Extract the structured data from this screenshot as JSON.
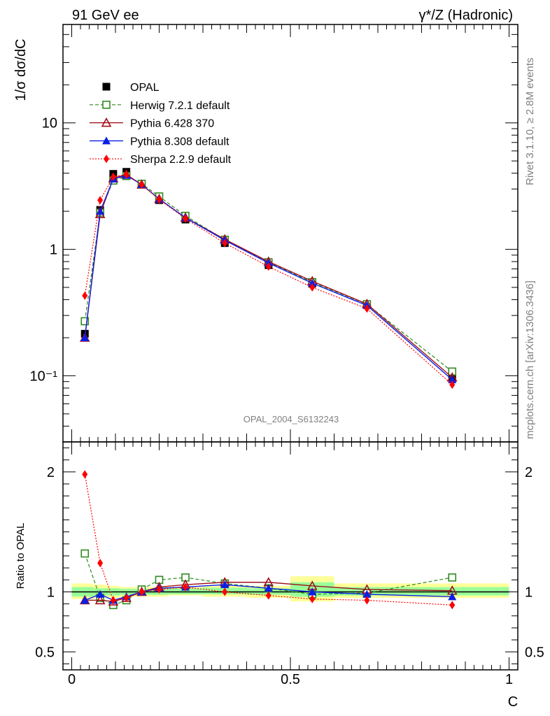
{
  "header": {
    "left": "91 GeV ee",
    "right": "γ*/Z (Hadronic)"
  },
  "side_labels": {
    "rivet": "Rivet 3.1.10, ≥ 2.8M events",
    "source": "mcplots.cern.ch [arXiv:1306.3436]"
  },
  "watermark": "OPAL_2004_S6132243",
  "colors": {
    "opal": "#000000",
    "herwig": "#2e8b1f",
    "pythia6": "#a0101a",
    "pythia8": "#0a1ee6",
    "sherpa": "#ff0000",
    "band_yellow": "#ffff99",
    "band_green": "#99ff99"
  },
  "chart_data": [
    {
      "type": "line",
      "title": "",
      "ylabel": "1/σ dσ/dC",
      "xlabel": "",
      "yscale": "log",
      "xlim": [
        -0.02,
        1.02
      ],
      "ylim": [
        0.03,
        60
      ],
      "y_tick_labels": [
        "10⁻¹",
        "1",
        "10"
      ],
      "legend_placement": "top-left",
      "legend": [
        "OPAL",
        "Herwig 7.2.1 default",
        "Pythia 6.428 370",
        "Pythia 8.308 default",
        "Sherpa 2.2.9 default"
      ],
      "x": [
        0.03,
        0.065,
        0.095,
        0.125,
        0.16,
        0.2,
        0.26,
        0.35,
        0.45,
        0.55,
        0.675,
        0.87
      ],
      "series": [
        {
          "name": "OPAL",
          "style": "data",
          "values": [
            0.215,
            2.05,
            3.95,
            4.1,
            3.25,
            2.45,
            1.72,
            1.12,
            0.75,
            0.535,
            0.365,
            0.096
          ]
        },
        {
          "name": "Herwig 7.2.1 default",
          "style": "herwig",
          "values": [
            0.27,
            1.95,
            3.5,
            3.8,
            3.3,
            2.62,
            1.84,
            1.19,
            0.79,
            0.55,
            0.368,
            0.108
          ]
        },
        {
          "name": "Pythia 6.428 370",
          "style": "pythia6",
          "values": [
            0.2,
            1.9,
            3.65,
            3.9,
            3.25,
            2.5,
            1.78,
            1.2,
            0.8,
            0.56,
            0.37,
            0.097
          ]
        },
        {
          "name": "Pythia 8.308 default",
          "style": "pythia8",
          "values": [
            0.2,
            2.0,
            3.6,
            3.85,
            3.25,
            2.5,
            1.78,
            1.18,
            0.78,
            0.54,
            0.36,
            0.093
          ]
        },
        {
          "name": "Sherpa 2.2.9 default",
          "style": "sherpa",
          "values": [
            0.43,
            2.45,
            3.75,
            3.9,
            3.25,
            2.48,
            1.75,
            1.12,
            0.73,
            0.5,
            0.34,
            0.085
          ]
        }
      ]
    },
    {
      "type": "line",
      "title": "",
      "ylabel": "Ratio to OPAL",
      "xlabel": "C",
      "xlim": [
        -0.02,
        1.02
      ],
      "ylim": [
        0.35,
        2.25
      ],
      "x_tick_labels": [
        "0",
        "0.5",
        "1"
      ],
      "y_tick_labels": [
        "0.5",
        "1",
        "2"
      ],
      "x": [
        0.03,
        0.065,
        0.095,
        0.125,
        0.16,
        0.2,
        0.26,
        0.35,
        0.45,
        0.55,
        0.675,
        0.87
      ],
      "bands": [
        {
          "x0": 0.0,
          "x1": 0.05,
          "yellow": [
            0.94,
            1.07
          ],
          "green": [
            0.96,
            1.04
          ]
        },
        {
          "x0": 0.05,
          "x1": 0.08,
          "yellow": [
            0.95,
            1.06
          ],
          "green": [
            0.97,
            1.03
          ]
        },
        {
          "x0": 0.08,
          "x1": 0.11,
          "yellow": [
            0.95,
            1.05
          ],
          "green": [
            0.97,
            1.03
          ]
        },
        {
          "x0": 0.11,
          "x1": 0.14,
          "yellow": [
            0.96,
            1.04
          ],
          "green": [
            0.975,
            1.025
          ]
        },
        {
          "x0": 0.14,
          "x1": 0.18,
          "yellow": [
            0.96,
            1.04
          ],
          "green": [
            0.975,
            1.025
          ]
        },
        {
          "x0": 0.18,
          "x1": 0.22,
          "yellow": [
            0.96,
            1.04
          ],
          "green": [
            0.975,
            1.025
          ]
        },
        {
          "x0": 0.22,
          "x1": 0.3,
          "yellow": [
            0.97,
            1.04
          ],
          "green": [
            0.98,
            1.03
          ]
        },
        {
          "x0": 0.3,
          "x1": 0.4,
          "yellow": [
            0.96,
            1.05
          ],
          "green": [
            0.98,
            1.035
          ]
        },
        {
          "x0": 0.4,
          "x1": 0.5,
          "yellow": [
            0.95,
            1.05
          ],
          "green": [
            0.975,
            1.03
          ]
        },
        {
          "x0": 0.5,
          "x1": 0.6,
          "yellow": [
            0.92,
            1.13
          ],
          "green": [
            0.96,
            1.08
          ]
        },
        {
          "x0": 0.6,
          "x1": 0.75,
          "yellow": [
            0.95,
            1.07
          ],
          "green": [
            0.97,
            1.04
          ]
        },
        {
          "x0": 0.75,
          "x1": 1.0,
          "yellow": [
            0.95,
            1.07
          ],
          "green": [
            0.97,
            1.04
          ]
        }
      ],
      "series": [
        {
          "name": "Herwig 7.2.1 default",
          "style": "herwig",
          "values": [
            1.32,
            0.95,
            0.89,
            0.93,
            1.02,
            1.1,
            1.12,
            1.07,
            1.03,
            0.98,
            0.99,
            1.12
          ]
        },
        {
          "name": "Pythia 6.428 370",
          "style": "pythia6",
          "values": [
            0.93,
            0.93,
            0.92,
            0.95,
            1.0,
            1.04,
            1.06,
            1.08,
            1.08,
            1.05,
            1.02,
            1.01
          ]
        },
        {
          "name": "Pythia 8.308 default",
          "style": "pythia8",
          "values": [
            0.93,
            0.98,
            0.93,
            0.96,
            1.0,
            1.03,
            1.04,
            1.06,
            1.03,
            1.0,
            0.98,
            0.96
          ]
        },
        {
          "name": "Sherpa 2.2.9 default",
          "style": "sherpa",
          "values": [
            1.98,
            1.24,
            0.93,
            0.95,
            1.0,
            1.02,
            1.04,
            1.0,
            0.97,
            0.94,
            0.93,
            0.89
          ]
        }
      ]
    }
  ]
}
